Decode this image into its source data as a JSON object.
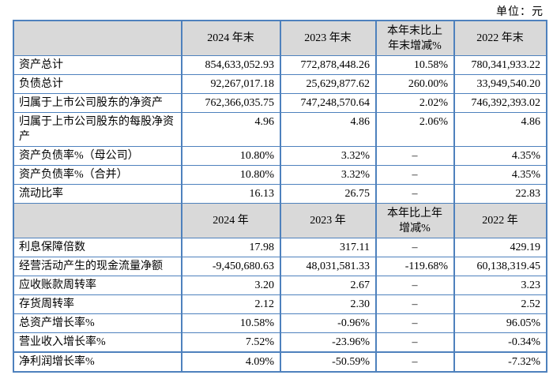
{
  "unit_label": "单位：元",
  "colors": {
    "border_blue": "#4e81bd",
    "header_gray": "#d9d9d9"
  },
  "table": {
    "sections": [
      {
        "header": [
          "",
          "2024 年末",
          "2023 年末",
          "本年末比上\n年末增减%",
          "2022 年末"
        ],
        "rows": [
          {
            "label": "资产总计",
            "values": [
              "854,633,052.93",
              "772,878,448.26",
              "10.58%",
              "780,341,933.22"
            ]
          },
          {
            "label": "负债总计",
            "values": [
              "92,267,017.18",
              "25,629,877.62",
              "260.00%",
              "33,949,540.20"
            ]
          },
          {
            "label": "归属于上市公司股东的净资产",
            "values": [
              "762,366,035.75",
              "747,248,570.64",
              "2.02%",
              "746,392,393.02"
            ]
          },
          {
            "label": "归属于上市公司股东的每股净资产",
            "values": [
              "4.96",
              "4.86",
              "2.06%",
              "4.86"
            ]
          },
          {
            "label": "资产负债率%（母公司）",
            "values": [
              "10.80%",
              "3.32%",
              "–",
              "4.35%"
            ]
          },
          {
            "label": "资产负债率%（合并）",
            "values": [
              "10.80%",
              "3.32%",
              "–",
              "4.35%"
            ]
          },
          {
            "label": "流动比率",
            "values": [
              "16.13",
              "26.75",
              "–",
              "22.83"
            ]
          }
        ]
      },
      {
        "header": [
          "",
          "2024 年",
          "2023 年",
          "本年比上年\n增减%",
          "2022 年"
        ],
        "rows": [
          {
            "label": "利息保障倍数",
            "values": [
              "17.98",
              "317.11",
              "–",
              "429.19"
            ]
          },
          {
            "label": "经营活动产生的现金流量净额",
            "values": [
              "-9,450,680.63",
              "48,031,581.33",
              "-119.68%",
              "60,138,319.45"
            ]
          },
          {
            "label": "应收账款周转率",
            "values": [
              "3.20",
              "2.67",
              "–",
              "3.23"
            ]
          },
          {
            "label": "存货周转率",
            "values": [
              "2.12",
              "2.30",
              "–",
              "2.52"
            ]
          },
          {
            "label": "总资产增长率%",
            "values": [
              "10.58%",
              "-0.96%",
              "–",
              "96.05%"
            ]
          },
          {
            "label": "营业收入增长率%",
            "values": [
              "7.52%",
              "-23.96%",
              "–",
              "-0.34%"
            ]
          },
          {
            "label": "净利润增长率%",
            "values": [
              "4.09%",
              "-50.59%",
              "–",
              "-7.32%"
            ]
          }
        ]
      }
    ]
  }
}
